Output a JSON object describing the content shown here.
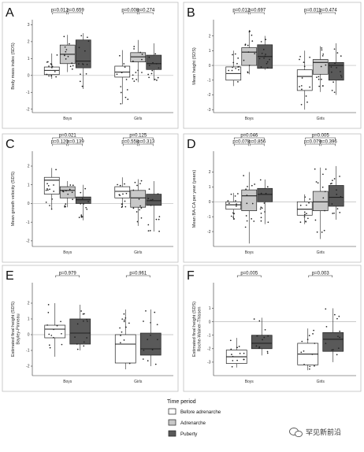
{
  "colors": {
    "before": "#ffffff",
    "adrenarche": "#c8c8c8",
    "puberty": "#595959",
    "zero_line": "#b8b8b8",
    "box_stroke": "#222222",
    "dot": "#222222",
    "frame": "#bfbfbf"
  },
  "legend": {
    "title": "Time period",
    "items": [
      "Before adrenarche",
      "Adrenarche",
      "Puberty"
    ]
  },
  "watermark": {
    "text": "罕见新前沿",
    "icon": "wechat-icon"
  },
  "chart_data": [
    {
      "type": "box",
      "letter": "A",
      "ylabel": "Body mass index (SDS)",
      "yticks": [
        -2,
        -1,
        0,
        1,
        2,
        3
      ],
      "ylim": [
        -2.2,
        3.3
      ],
      "categories": [
        "Boys",
        "Girls"
      ],
      "series": [
        {
          "name": "Before adrenarche",
          "boxes": [
            [
              -0.2,
              0.05,
              0.3,
              0.5,
              1.3
            ],
            [
              -1.7,
              -0.1,
              0.2,
              0.55,
              1.5
            ]
          ]
        },
        {
          "name": "Adrenarche",
          "boxes": [
            [
              0.2,
              0.7,
              1.25,
              1.8,
              2.4
            ],
            [
              -0.4,
              0.8,
              1.1,
              1.35,
              2.1
            ]
          ]
        },
        {
          "name": "Puberty",
          "boxes": [
            [
              -0.8,
              0.45,
              0.85,
              2.1,
              2.5
            ],
            [
              -0.3,
              0.35,
              0.7,
              1.2,
              1.9
            ]
          ]
        }
      ],
      "comparisons": [
        {
          "cat": 0,
          "from": 0,
          "to": 1,
          "level": 0,
          "label": "p=0.012"
        },
        {
          "cat": 0,
          "from": 1,
          "to": 2,
          "level": 0,
          "label": "p=0.659"
        },
        {
          "cat": 1,
          "from": 0,
          "to": 1,
          "level": 0,
          "label": "p=0.008"
        },
        {
          "cat": 1,
          "from": 1,
          "to": 2,
          "level": 0,
          "label": "p=0.274"
        }
      ]
    },
    {
      "type": "box",
      "letter": "B",
      "ylabel": "Mean height (SDS)",
      "yticks": [
        -3,
        -2,
        -1,
        0,
        1,
        2
      ],
      "ylim": [
        -3.2,
        3.1
      ],
      "categories": [
        "Boys",
        "Girls"
      ],
      "series": [
        {
          "name": "Before adrenarche",
          "boxes": [
            [
              -1.4,
              -1.0,
              -0.55,
              -0.1,
              1.0
            ],
            [
              -3.0,
              -1.7,
              -0.75,
              -0.3,
              1.0
            ]
          ]
        },
        {
          "name": "Adrenarche",
          "boxes": [
            [
              -0.6,
              0.0,
              0.9,
              1.2,
              2.4
            ],
            [
              -1.8,
              -0.6,
              0.2,
              0.4,
              1.3
            ]
          ]
        },
        {
          "name": "Puberty",
          "boxes": [
            [
              -0.3,
              -0.2,
              0.6,
              1.4,
              2.0
            ],
            [
              -2.0,
              -1.0,
              0.0,
              0.2,
              1.5
            ]
          ]
        }
      ],
      "comparisons": [
        {
          "cat": 0,
          "from": 0,
          "to": 1,
          "level": 0,
          "label": "p=0.012"
        },
        {
          "cat": 0,
          "from": 1,
          "to": 2,
          "level": 0,
          "label": "p=0.697"
        },
        {
          "cat": 1,
          "from": 0,
          "to": 1,
          "level": 0,
          "label": "p=0.011"
        },
        {
          "cat": 1,
          "from": 1,
          "to": 2,
          "level": 0,
          "label": "p=0.474"
        }
      ]
    },
    {
      "type": "box",
      "letter": "C",
      "ylabel": "Mean growth velocity (SDS)",
      "yticks": [
        -2,
        -1,
        0,
        1,
        2
      ],
      "ylim": [
        -2.3,
        2.8
      ],
      "categories": [
        "Boys",
        "Girls"
      ],
      "series": [
        {
          "name": "Before adrenarche",
          "boxes": [
            [
              -0.3,
              0.5,
              1.25,
              1.4,
              1.9
            ],
            [
              -0.2,
              0.3,
              0.65,
              0.9,
              1.4
            ]
          ]
        },
        {
          "name": "Adrenarche",
          "boxes": [
            [
              -0.2,
              0.3,
              0.7,
              0.9,
              1.2
            ],
            [
              -1.2,
              -0.2,
              0.3,
              0.7,
              1.3
            ]
          ]
        },
        {
          "name": "Puberty",
          "boxes": [
            [
              -0.9,
              0.0,
              0.2,
              0.35,
              1.0
            ],
            [
              -1.5,
              -0.1,
              0.15,
              0.5,
              1.2
            ]
          ]
        }
      ],
      "comparisons": [
        {
          "cat": 0,
          "from": 0,
          "to": 2,
          "level": 1,
          "label": "p=0.021"
        },
        {
          "cat": 0,
          "from": 0,
          "to": 1,
          "level": 0,
          "label": "p=0.120"
        },
        {
          "cat": 0,
          "from": 1,
          "to": 2,
          "level": 0,
          "label": "p=0.139"
        },
        {
          "cat": 1,
          "from": 0,
          "to": 2,
          "level": 1,
          "label": "p=0.125"
        },
        {
          "cat": 1,
          "from": 0,
          "to": 1,
          "level": 0,
          "label": "p=0.558"
        },
        {
          "cat": 1,
          "from": 1,
          "to": 2,
          "level": 0,
          "label": "p=0.313"
        }
      ]
    },
    {
      "type": "box",
      "letter": "D",
      "ylabel": "Mean BA-CA per year (years)",
      "yticks": [
        -2,
        -1,
        0,
        1,
        2
      ],
      "ylim": [
        -3.0,
        3.4
      ],
      "categories": [
        "Boys",
        "Girls"
      ],
      "series": [
        {
          "name": "Before adrenarche",
          "boxes": [
            [
              -1.2,
              -0.5,
              -0.2,
              0.0,
              0.6
            ],
            [
              -1.5,
              -0.9,
              -0.5,
              0.0,
              0.5
            ]
          ]
        },
        {
          "name": "Adrenarche",
          "boxes": [
            [
              -2.8,
              -0.6,
              0.4,
              0.8,
              2.0
            ],
            [
              -2.5,
              -0.6,
              0.0,
              0.7,
              2.3
            ]
          ]
        },
        {
          "name": "Puberty",
          "boxes": [
            [
              -1.5,
              0.0,
              0.5,
              0.9,
              1.5
            ],
            [
              -1.2,
              -0.3,
              0.3,
              1.1,
              2.4
            ]
          ]
        }
      ],
      "comparisons": [
        {
          "cat": 0,
          "from": 0,
          "to": 2,
          "level": 1,
          "label": "p=0.046"
        },
        {
          "cat": 0,
          "from": 0,
          "to": 1,
          "level": 0,
          "label": "p=0.078"
        },
        {
          "cat": 0,
          "from": 1,
          "to": 2,
          "level": 0,
          "label": "p=0.856"
        },
        {
          "cat": 1,
          "from": 0,
          "to": 2,
          "level": 1,
          "label": "p=0.005"
        },
        {
          "cat": 1,
          "from": 0,
          "to": 1,
          "level": 0,
          "label": "p=0.079"
        },
        {
          "cat": 1,
          "from": 1,
          "to": 2,
          "level": 0,
          "label": "p=0.396"
        }
      ]
    },
    {
      "type": "box",
      "letter": "E",
      "ylabel": "Estimated final height (SDS) Bayley-Pinneau",
      "yticks": [
        -2,
        -1,
        0,
        1,
        2
      ],
      "ylim": [
        -2.6,
        3.3
      ],
      "categories": [
        "Boys",
        "Girls"
      ],
      "series": [
        {
          "name": "Before adrenarche",
          "boxes": [
            [
              -1.4,
              -0.2,
              0.35,
              0.6,
              2.0
            ],
            [
              -2.2,
              -1.8,
              -0.6,
              0.0,
              1.6
            ]
          ]
        },
        {
          "name": "Puberty",
          "boxes": [
            [
              -1.0,
              -0.6,
              0.1,
              1.0,
              1.9
            ],
            [
              -2.0,
              -1.3,
              -0.9,
              0.1,
              1.6
            ]
          ]
        }
      ],
      "comparisons": [
        {
          "cat": 0,
          "from": 0,
          "to": 1,
          "level": 0,
          "label": "p=0.979"
        },
        {
          "cat": 1,
          "from": 0,
          "to": 1,
          "level": 0,
          "label": "p=0.961"
        }
      ]
    },
    {
      "type": "box",
      "letter": "F",
      "ylabel": "Estimated final height (SDS) Roche-Wainer-Thissen",
      "yticks": [
        -3,
        -2,
        -1,
        0,
        1
      ],
      "ylim": [
        -4.0,
        2.9
      ],
      "categories": [
        "Boys",
        "Girls"
      ],
      "series": [
        {
          "name": "Before adrenarche",
          "boxes": [
            [
              -3.4,
              -3.1,
              -2.6,
              -2.1,
              -1.2
            ],
            [
              -3.6,
              -3.2,
              -2.4,
              -1.6,
              -0.5
            ]
          ]
        },
        {
          "name": "Puberty",
          "boxes": [
            [
              -2.5,
              -2.0,
              -1.6,
              -1.0,
              0.3
            ],
            [
              -3.0,
              -2.2,
              -1.3,
              -0.8,
              1.0
            ]
          ]
        }
      ],
      "comparisons": [
        {
          "cat": 0,
          "from": 0,
          "to": 1,
          "level": 0,
          "label": "p=0.005"
        },
        {
          "cat": 1,
          "from": 0,
          "to": 1,
          "level": 0,
          "label": "p=0.003"
        }
      ]
    }
  ]
}
